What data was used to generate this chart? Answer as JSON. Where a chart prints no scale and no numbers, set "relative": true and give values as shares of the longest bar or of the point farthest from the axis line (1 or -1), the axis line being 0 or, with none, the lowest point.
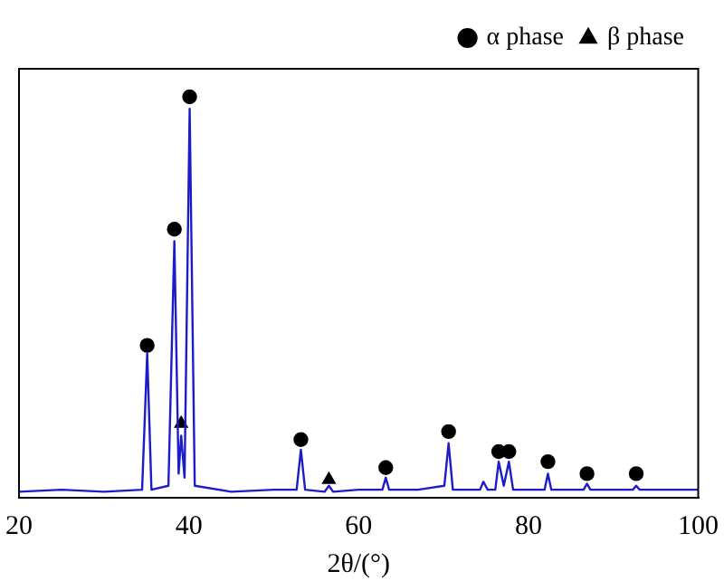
{
  "chart_data": {
    "type": "line",
    "xlabel": "2θ/(°)",
    "relative": true,
    "xlim": [
      20,
      100
    ],
    "xticks": [
      20,
      40,
      60,
      80,
      100
    ],
    "tick_labels": "x",
    "grid": false,
    "legend": "top right",
    "marker": "none",
    "series": [
      {
        "color": "#1c1cc8",
        "x": [
          20,
          25,
          30,
          34.5,
          35.1,
          35.6,
          37.6,
          38.3,
          38.8,
          39.1,
          39.5,
          40.1,
          40.7,
          45,
          50,
          52.7,
          53.2,
          53.7,
          56,
          56.5,
          57,
          60,
          62.8,
          63.2,
          63.6,
          67,
          70.1,
          70.6,
          71.1,
          74.3,
          74.7,
          75.2,
          76.1,
          76.5,
          77.1,
          77.7,
          78.2,
          81.9,
          82.3,
          82.7,
          86.5,
          86.9,
          87.3,
          92.3,
          92.7,
          93.1,
          100
        ],
        "values": [
          0.015,
          0.02,
          0.015,
          0.02,
          0.36,
          0.02,
          0.03,
          0.64,
          0.06,
          0.155,
          0.05,
          0.97,
          0.03,
          0.015,
          0.02,
          0.02,
          0.12,
          0.02,
          0.015,
          0.03,
          0.015,
          0.02,
          0.02,
          0.05,
          0.02,
          0.02,
          0.03,
          0.136,
          0.02,
          0.02,
          0.04,
          0.02,
          0.02,
          0.09,
          0.03,
          0.09,
          0.02,
          0.02,
          0.06,
          0.02,
          0.02,
          0.035,
          0.02,
          0.02,
          0.03,
          0.02,
          0.02
        ]
      },
      {
        "type": "scatter",
        "name": "α phase",
        "color": "#000000",
        "marker": "circle",
        "x": [
          35.1,
          38.3,
          40.1,
          53.2,
          63.2,
          70.6,
          76.5,
          77.7,
          82.3,
          86.9,
          92.7
        ],
        "values": [
          0.38,
          0.67,
          1.0,
          0.145,
          0.075,
          0.165,
          0.115,
          0.115,
          0.09,
          0.06,
          0.06
        ]
      },
      {
        "type": "scatter",
        "name": "β phase",
        "color": "#000000",
        "marker": "triangle",
        "x": [
          39.1,
          56.5
        ],
        "values": [
          0.185,
          0.045
        ]
      }
    ]
  }
}
